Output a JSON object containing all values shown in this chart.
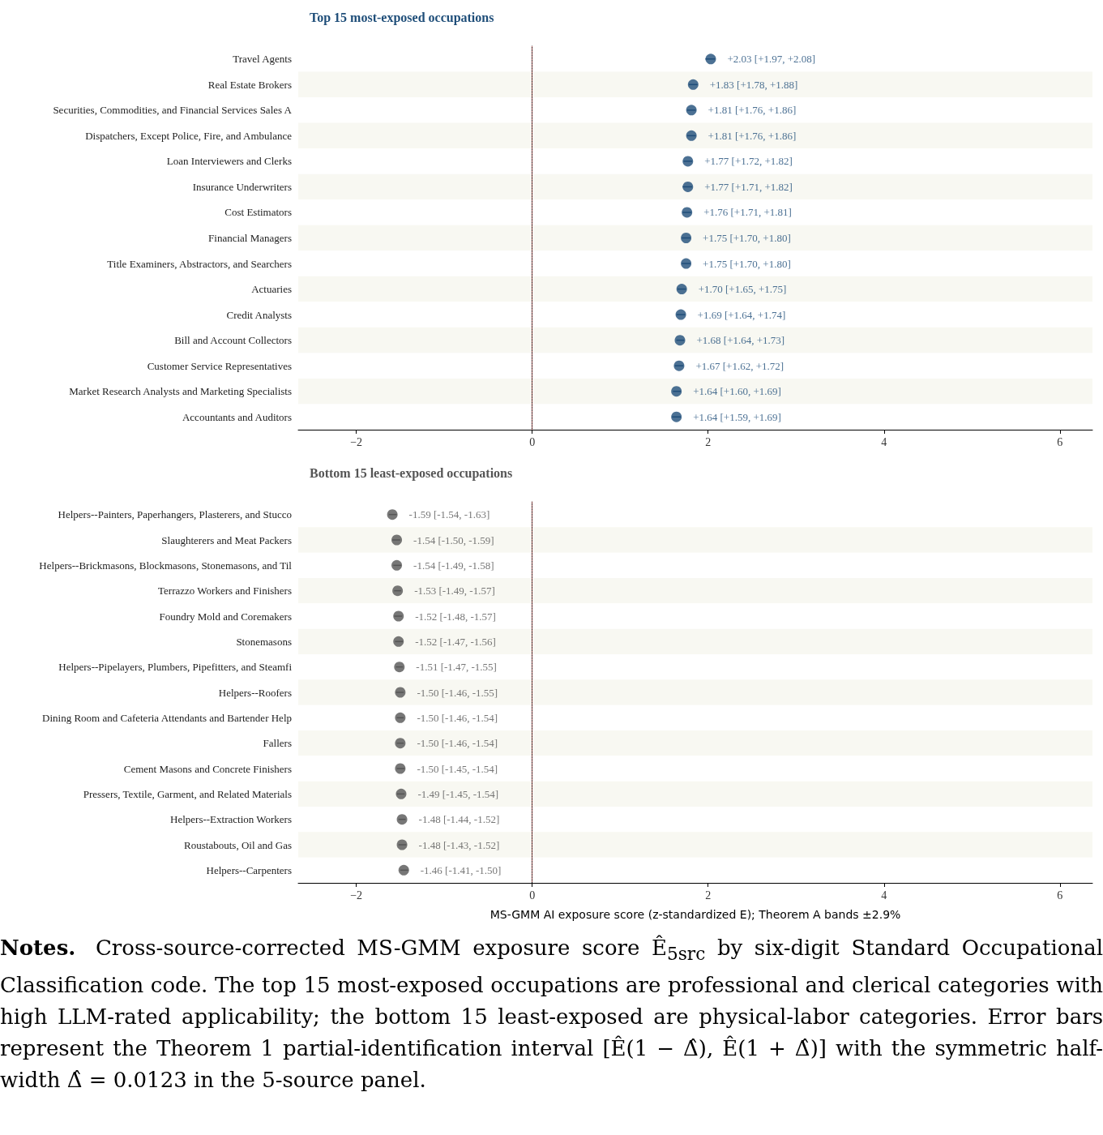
{
  "chart_data": [
    {
      "type": "scatter",
      "orientation": "horizontal",
      "title": "Top 15 most-exposed occupations",
      "marker": "circle",
      "color": "#1f4e79",
      "categories": [
        "Travel Agents",
        "Real Estate Brokers",
        "Securities, Commodities, and Financial Services Sales A",
        "Dispatchers, Except Police, Fire, and Ambulance",
        "Loan Interviewers and Clerks",
        "Insurance Underwriters",
        "Cost Estimators",
        "Financial Managers",
        "Title Examiners, Abstractors, and Searchers",
        "Actuaries",
        "Credit Analysts",
        "Bill and Account Collectors",
        "Customer Service Representatives",
        "Market Research Analysts and Marketing Specialists",
        "Accountants and Auditors"
      ],
      "values": [
        2.03,
        1.83,
        1.81,
        1.81,
        1.77,
        1.77,
        1.76,
        1.75,
        1.75,
        1.7,
        1.69,
        1.68,
        1.67,
        1.64,
        1.64
      ],
      "errors": [
        [
          1.97,
          2.08
        ],
        [
          1.78,
          1.88
        ],
        [
          1.76,
          1.86
        ],
        [
          1.76,
          1.86
        ],
        [
          1.72,
          1.82
        ],
        [
          1.71,
          1.82
        ],
        [
          1.71,
          1.81
        ],
        [
          1.7,
          1.8
        ],
        [
          1.7,
          1.8
        ],
        [
          1.65,
          1.75
        ],
        [
          1.64,
          1.74
        ],
        [
          1.64,
          1.73
        ],
        [
          1.62,
          1.72
        ],
        [
          1.6,
          1.69
        ],
        [
          1.59,
          1.69
        ]
      ],
      "value_labels": [
        "+2.03 [+1.97, +2.08]",
        "+1.83 [+1.78, +1.88]",
        "+1.81 [+1.76, +1.86]",
        "+1.81 [+1.76, +1.86]",
        "+1.77 [+1.72, +1.82]",
        "+1.77 [+1.71, +1.82]",
        "+1.76 [+1.71, +1.81]",
        "+1.75 [+1.70, +1.80]",
        "+1.75 [+1.70, +1.80]",
        "+1.70 [+1.65, +1.75]",
        "+1.69 [+1.64, +1.74]",
        "+1.68 [+1.64, +1.73]",
        "+1.67 [+1.62, +1.72]",
        "+1.64 [+1.60, +1.69]",
        "+1.64 [+1.59, +1.69]"
      ],
      "xlim": [
        -2.66,
        6.37
      ],
      "xticks": [
        {
          "value": -2,
          "label": "−2"
        },
        0,
        2,
        4,
        6
      ],
      "ref_lines": [
        {
          "axis": "x",
          "value": 0,
          "color": "#d46a6a",
          "line_style": "dotted"
        }
      ]
    },
    {
      "type": "scatter",
      "orientation": "horizontal",
      "title": "Bottom 15 least-exposed occupations",
      "marker": "circle",
      "color": "#555555",
      "xlabel": "MS-GMM AI exposure score (z-standardized E); Theorem A bands ±2.9%",
      "categories": [
        "Helpers--Painters, Paperhangers, Plasterers, and Stucco",
        "Slaughterers and Meat Packers",
        "Helpers--Brickmasons, Blockmasons, Stonemasons, and Til",
        "Terrazzo Workers and Finishers",
        "Foundry Mold and Coremakers",
        "Stonemasons",
        "Helpers--Pipelayers, Plumbers, Pipefitters, and Steamfi",
        "Helpers--Roofers",
        "Dining Room and Cafeteria Attendants and Bartender Help",
        "Fallers",
        "Cement Masons and Concrete Finishers",
        "Pressers, Textile, Garment, and Related Materials",
        "Helpers--Extraction Workers",
        "Roustabouts, Oil and Gas",
        "Helpers--Carpenters"
      ],
      "values": [
        -1.59,
        -1.54,
        -1.54,
        -1.53,
        -1.52,
        -1.52,
        -1.51,
        -1.5,
        -1.5,
        -1.5,
        -1.5,
        -1.49,
        -1.48,
        -1.48,
        -1.46
      ],
      "errors": [
        [
          -1.63,
          -1.54
        ],
        [
          -1.59,
          -1.5
        ],
        [
          -1.58,
          -1.49
        ],
        [
          -1.57,
          -1.49
        ],
        [
          -1.57,
          -1.48
        ],
        [
          -1.56,
          -1.47
        ],
        [
          -1.55,
          -1.47
        ],
        [
          -1.55,
          -1.46
        ],
        [
          -1.54,
          -1.46
        ],
        [
          -1.54,
          -1.46
        ],
        [
          -1.54,
          -1.45
        ],
        [
          -1.54,
          -1.45
        ],
        [
          -1.52,
          -1.44
        ],
        [
          -1.52,
          -1.43
        ],
        [
          -1.5,
          -1.41
        ]
      ],
      "value_labels": [
        "-1.59 [-1.54, -1.63]",
        "-1.54 [-1.50, -1.59]",
        "-1.54 [-1.49, -1.58]",
        "-1.53 [-1.49, -1.57]",
        "-1.52 [-1.48, -1.57]",
        "-1.52 [-1.47, -1.56]",
        "-1.51 [-1.47, -1.55]",
        "-1.50 [-1.46, -1.55]",
        "-1.50 [-1.46, -1.54]",
        "-1.50 [-1.46, -1.54]",
        "-1.50 [-1.45, -1.54]",
        "-1.49 [-1.45, -1.54]",
        "-1.48 [-1.44, -1.52]",
        "-1.48 [-1.43, -1.52]",
        "-1.46 [-1.41, -1.50]"
      ],
      "xlim": [
        -2.66,
        6.37
      ],
      "xticks": [
        {
          "value": -2,
          "label": "−2"
        },
        0,
        2,
        4,
        6
      ],
      "ref_lines": [
        {
          "axis": "x",
          "value": 0,
          "color": "#d46a6a",
          "line_style": "dotted"
        }
      ],
      "annotations": [
        "Notes.",
        "Cross-source-corrected MS-GMM exposure score Ê$_{5src}$ by six-digit Standard Occupational Classification code. The top 15 most-exposed occupations are professional and clerical categories with high LLM-rated applicability; the bottom 15 least-exposed are physical-labor categories. Error bars represent the Theorem 1 partial-identification interval [Ê(1 − Δ̂), Ê(1 + Δ̂)] with the symmetric half-width Δ̂ = 0.0123 in the 5-source panel."
      ]
    }
  ]
}
